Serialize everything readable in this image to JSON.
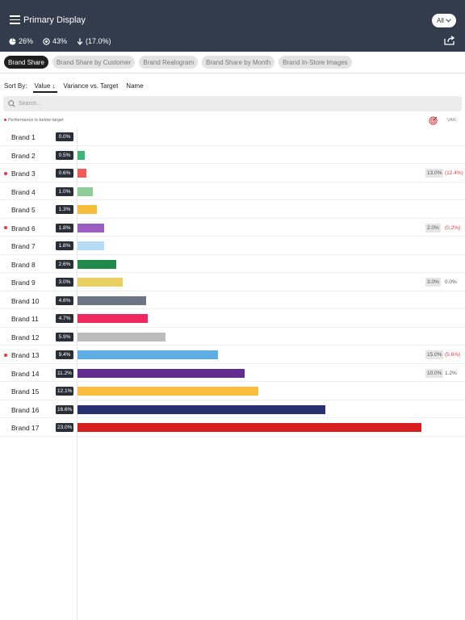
{
  "header": {
    "title": "Primary Display",
    "filter_label": "All",
    "stats": [
      {
        "icon": "pie-chart-icon",
        "value": "26%"
      },
      {
        "icon": "target-circle-icon",
        "value": "43%"
      },
      {
        "icon": "arrow-down-icon",
        "value": "(17.0%)"
      }
    ]
  },
  "tabs": [
    {
      "label": "Brand Share",
      "active": true
    },
    {
      "label": "Brand Share by Customer",
      "active": false
    },
    {
      "label": "Brand Realogram",
      "active": false
    },
    {
      "label": "Brand Share by Month",
      "active": false
    },
    {
      "label": "Brand In-Store Images",
      "active": false
    }
  ],
  "sort": {
    "label": "Sort By:",
    "options": [
      {
        "label": "Value ↓",
        "active": true
      },
      {
        "label": "Variance vs. Target",
        "active": false
      },
      {
        "label": "Name",
        "active": false
      }
    ]
  },
  "search": {
    "placeholder": "Search..."
  },
  "legend": {
    "below_target_text": "Performance is below target",
    "var_label": "VAR."
  },
  "scale": {
    "max_value": 23.0
  },
  "brands": [
    {
      "name": "Brand 1",
      "value": 0.0,
      "label": "0.0%",
      "color": "#d0d0d0",
      "below_target": false
    },
    {
      "name": "Brand 2",
      "value": 0.5,
      "label": "0.5%",
      "color": "#3db57a",
      "below_target": false
    },
    {
      "name": "Brand 3",
      "value": 0.6,
      "label": "0.6%",
      "color": "#f05a5a",
      "below_target": true,
      "target": "13.0%",
      "variance": "(12.4%)",
      "variance_negative": true
    },
    {
      "name": "Brand 4",
      "value": 1.0,
      "label": "1.0%",
      "color": "#8fcd97",
      "below_target": false
    },
    {
      "name": "Brand 5",
      "value": 1.3,
      "label": "1.3%",
      "color": "#f7bc3b",
      "below_target": false
    },
    {
      "name": "Brand 6",
      "value": 1.8,
      "label": "1.8%",
      "color": "#9b5dc0",
      "below_target": true,
      "target": "2.0%",
      "variance": "(0.2%)",
      "variance_negative": true
    },
    {
      "name": "Brand 7",
      "value": 1.8,
      "label": "1.8%",
      "color": "#b5dcf7",
      "below_target": false
    },
    {
      "name": "Brand 8",
      "value": 2.6,
      "label": "2.6%",
      "color": "#1f8a4a",
      "below_target": false
    },
    {
      "name": "Brand 9",
      "value": 3.0,
      "label": "3.0%",
      "color": "#e9d060",
      "below_target": false,
      "target": "3.0%",
      "variance": "0.0%",
      "variance_negative": false
    },
    {
      "name": "Brand 10",
      "value": 4.6,
      "label": "4.6%",
      "color": "#6c7583",
      "below_target": false
    },
    {
      "name": "Brand 11",
      "value": 4.7,
      "label": "4.7%",
      "color": "#f0265e",
      "below_target": false
    },
    {
      "name": "Brand 12",
      "value": 5.9,
      "label": "5.9%",
      "color": "#bdbdbd",
      "below_target": false
    },
    {
      "name": "Brand 13",
      "value": 9.4,
      "label": "9.4%",
      "color": "#5eaee6",
      "below_target": true,
      "target": "15.0%",
      "variance": "(5.6%)",
      "variance_negative": true
    },
    {
      "name": "Brand 14",
      "value": 11.2,
      "label": "11.2%",
      "color": "#622d8e",
      "below_target": false,
      "target": "10.0%",
      "variance": "1.2%",
      "variance_negative": false
    },
    {
      "name": "Brand 15",
      "value": 12.1,
      "label": "12.1%",
      "color": "#fbbd3e",
      "below_target": false
    },
    {
      "name": "Brand 16",
      "value": 16.6,
      "label": "16.6%",
      "color": "#283170",
      "below_target": false
    },
    {
      "name": "Brand 17",
      "value": 23.0,
      "label": "23.0%",
      "color": "#d71f1f",
      "below_target": false
    }
  ],
  "colors": {
    "header_bg": "#333c4c",
    "below_target_dot": "#e03a3a"
  }
}
